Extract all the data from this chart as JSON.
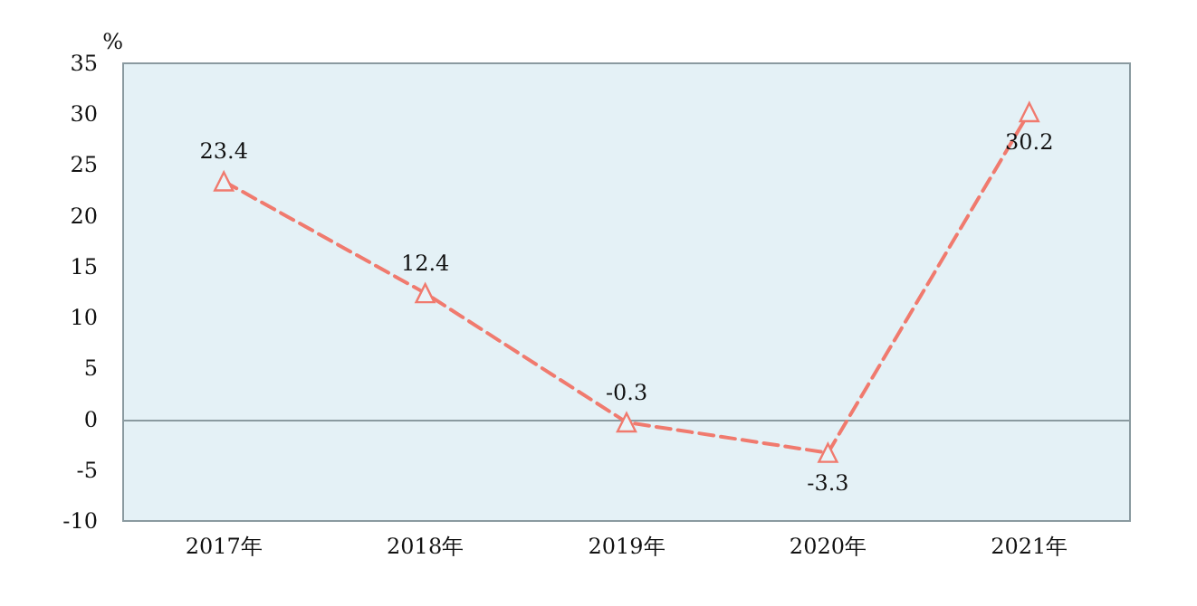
{
  "chart_data": {
    "type": "line",
    "ylabel": "%",
    "categories": [
      "2017年",
      "2018年",
      "2019年",
      "2020年",
      "2021年"
    ],
    "series": [
      {
        "color": "#f07a6e",
        "values": [
          23.4,
          12.4,
          -0.3,
          -3.3,
          30.2
        ]
      }
    ],
    "ylim": [
      -10,
      35
    ],
    "yticks": [
      -10,
      -5,
      0,
      5,
      10,
      15,
      20,
      25,
      30,
      35
    ],
    "data_labels": true,
    "marker": "triangle",
    "line_style": "dashed"
  }
}
